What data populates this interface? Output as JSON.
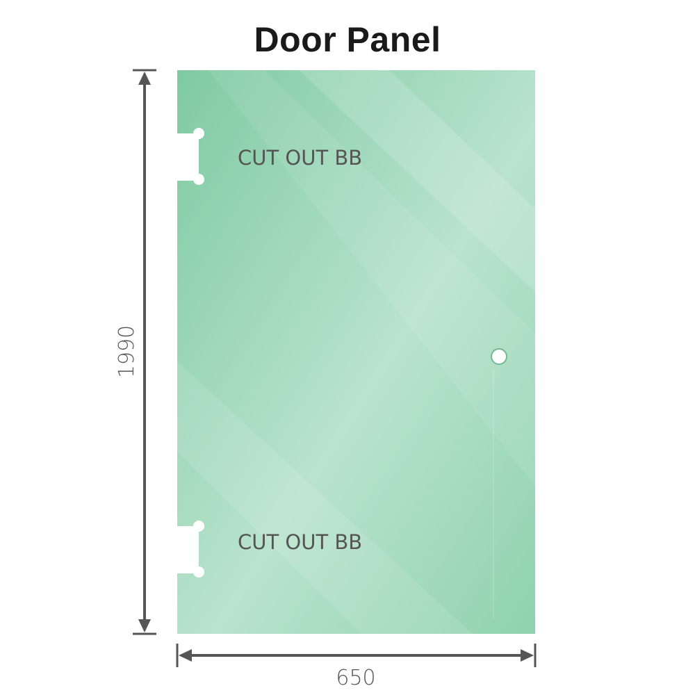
{
  "title": "Door Panel",
  "panel": {
    "height_label": "1990",
    "width_label": "650",
    "cutouts": [
      {
        "label": "CUT OUT BB"
      },
      {
        "label": "CUT OUT BB"
      }
    ],
    "glass_color": "#86cfa8"
  }
}
